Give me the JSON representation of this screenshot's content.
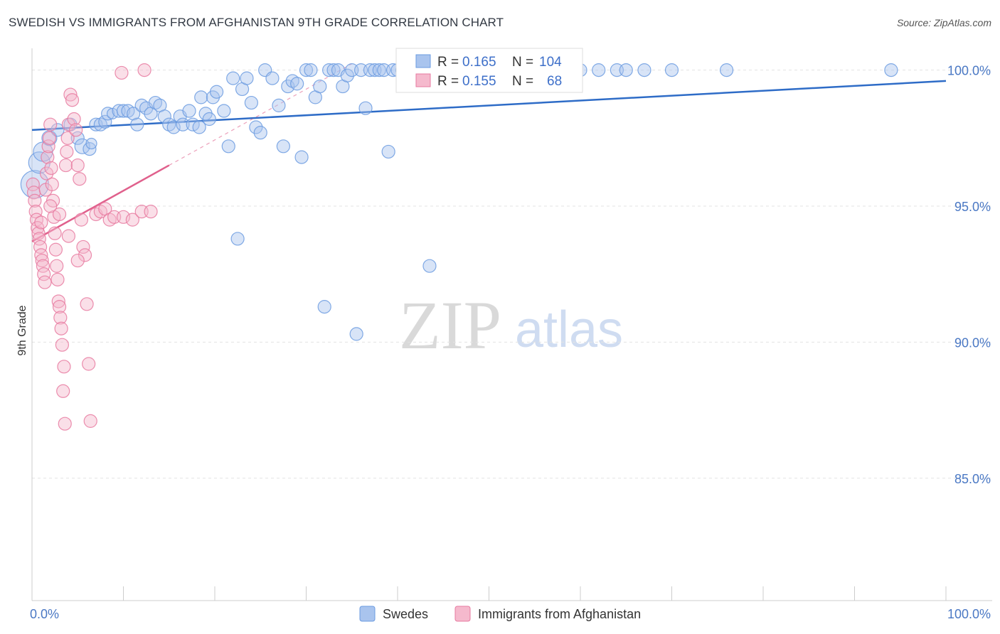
{
  "chart_data": {
    "type": "scatter",
    "title": "SWEDISH VS IMMIGRANTS FROM AFGHANISTAN 9TH GRADE CORRELATION CHART",
    "source": "Source: ZipAtlas.com",
    "xlabel": "",
    "ylabel": "9th Grade",
    "xlim": [
      0,
      100
    ],
    "ylim": [
      80.5,
      100.8
    ],
    "x_tick_labels": [
      {
        "value": 0,
        "label": "0.0%"
      },
      {
        "value": 100,
        "label": "100.0%"
      }
    ],
    "y_tick_labels": [
      {
        "value": 100,
        "label": "100.0%"
      },
      {
        "value": 95,
        "label": "95.0%"
      },
      {
        "value": 90,
        "label": "90.0%"
      },
      {
        "value": 85,
        "label": "85.0%"
      }
    ],
    "watermark": {
      "zip": "ZIP",
      "atlas": "atlas"
    },
    "legend": {
      "rows": [
        {
          "r_label": "R = ",
          "r_value": "0.165",
          "n_label": "N = ",
          "n_value": "104"
        },
        {
          "r_label": "R = ",
          "r_value": "0.155",
          "n_label": "N = ",
          "n_value": "68"
        }
      ]
    },
    "series": [
      {
        "name": "Swedes",
        "color": "#6b9be0",
        "fill": "#a9c4ee",
        "trend": {
          "x0": 0,
          "y0": 97.8,
          "x1": 100,
          "y1": 99.6,
          "color": "#2e6cc7"
        },
        "points": [
          [
            0.3,
            95.8,
            26
          ],
          [
            0.8,
            96.6,
            20
          ],
          [
            1.2,
            97.0,
            18
          ],
          [
            1.9,
            97.5,
            14
          ],
          [
            2.8,
            97.8,
            12
          ],
          [
            4.2,
            98.0,
            12
          ],
          [
            5.0,
            97.5,
            12
          ],
          [
            5.5,
            97.2,
            14
          ],
          [
            6.3,
            97.1,
            12
          ],
          [
            6.5,
            97.3,
            10
          ],
          [
            7.0,
            98.0,
            12
          ],
          [
            7.5,
            98.0,
            12
          ],
          [
            8.0,
            98.1,
            12
          ],
          [
            8.3,
            98.4,
            12
          ],
          [
            8.8,
            98.4,
            10
          ],
          [
            9.5,
            98.5,
            12
          ],
          [
            10.0,
            98.5,
            12
          ],
          [
            10.5,
            98.5,
            12
          ],
          [
            11.1,
            98.4,
            12
          ],
          [
            11.5,
            98.0,
            12
          ],
          [
            12.0,
            98.7,
            12
          ],
          [
            12.5,
            98.6,
            12
          ],
          [
            13.0,
            98.4,
            12
          ],
          [
            13.5,
            98.8,
            12
          ],
          [
            14.0,
            98.7,
            12
          ],
          [
            14.5,
            98.3,
            12
          ],
          [
            15.0,
            98.0,
            12
          ],
          [
            15.5,
            97.9,
            12
          ],
          [
            16.2,
            98.3,
            12
          ],
          [
            16.5,
            98.0,
            12
          ],
          [
            17.2,
            98.5,
            12
          ],
          [
            17.6,
            98.0,
            12
          ],
          [
            18.3,
            97.9,
            12
          ],
          [
            18.5,
            99.0,
            12
          ],
          [
            19.0,
            98.4,
            12
          ],
          [
            19.4,
            98.2,
            12
          ],
          [
            19.8,
            99.0,
            12
          ],
          [
            20.2,
            99.2,
            12
          ],
          [
            21.0,
            98.5,
            12
          ],
          [
            21.5,
            97.2,
            12
          ],
          [
            22.0,
            99.7,
            12
          ],
          [
            22.5,
            93.8,
            12
          ],
          [
            23.0,
            99.3,
            12
          ],
          [
            23.5,
            99.7,
            12
          ],
          [
            24.0,
            98.8,
            12
          ],
          [
            24.5,
            97.9,
            12
          ],
          [
            25.0,
            97.7,
            12
          ],
          [
            25.5,
            100.0,
            12
          ],
          [
            26.3,
            99.7,
            12
          ],
          [
            27.0,
            98.7,
            12
          ],
          [
            27.5,
            97.2,
            12
          ],
          [
            28.0,
            99.4,
            12
          ],
          [
            28.5,
            99.6,
            12
          ],
          [
            29.0,
            99.5,
            12
          ],
          [
            29.5,
            96.8,
            12
          ],
          [
            30.0,
            100.0,
            12
          ],
          [
            30.5,
            100.0,
            12
          ],
          [
            31.0,
            99.0,
            12
          ],
          [
            31.5,
            99.4,
            12
          ],
          [
            32.0,
            91.3,
            12
          ],
          [
            32.5,
            100.0,
            12
          ],
          [
            33.0,
            100.0,
            12
          ],
          [
            33.5,
            100.0,
            12
          ],
          [
            34.0,
            99.4,
            12
          ],
          [
            34.5,
            99.8,
            12
          ],
          [
            35.0,
            100.0,
            12
          ],
          [
            35.5,
            90.3,
            12
          ],
          [
            36.0,
            100.0,
            12
          ],
          [
            36.5,
            98.6,
            12
          ],
          [
            37.0,
            100.0,
            12
          ],
          [
            37.5,
            100.0,
            12
          ],
          [
            38.0,
            100.0,
            12
          ],
          [
            38.5,
            100.0,
            12
          ],
          [
            39.0,
            97.0,
            12
          ],
          [
            39.5,
            100.0,
            12
          ],
          [
            40.0,
            100.0,
            12
          ],
          [
            40.5,
            100.0,
            12
          ],
          [
            41.0,
            100.0,
            12
          ],
          [
            42.0,
            100.0,
            12
          ],
          [
            43.0,
            100.0,
            12
          ],
          [
            43.5,
            92.8,
            12
          ],
          [
            44.0,
            100.0,
            12
          ],
          [
            45.0,
            100.0,
            12
          ],
          [
            46.0,
            100.0,
            12
          ],
          [
            47.0,
            100.0,
            12
          ],
          [
            48.0,
            100.0,
            12
          ],
          [
            49.0,
            100.0,
            12
          ],
          [
            50.0,
            100.0,
            12
          ],
          [
            51.0,
            100.0,
            12
          ],
          [
            52.0,
            100.0,
            12
          ],
          [
            53.0,
            100.0,
            12
          ],
          [
            54.0,
            100.0,
            12
          ],
          [
            55.0,
            100.0,
            12
          ],
          [
            56.0,
            100.0,
            12
          ],
          [
            57.0,
            100.0,
            12
          ],
          [
            58.0,
            100.0,
            12
          ],
          [
            60.0,
            100.0,
            12
          ],
          [
            62.0,
            100.0,
            12
          ],
          [
            64.0,
            100.0,
            12
          ],
          [
            65.0,
            100.0,
            12
          ],
          [
            67.0,
            100.0,
            12
          ],
          [
            70.0,
            100.0,
            12
          ],
          [
            76.0,
            100.0,
            12
          ],
          [
            94.0,
            100.0,
            12
          ]
        ]
      },
      {
        "name": "Immigrants from Afghanistan",
        "color": "#e77aa0",
        "fill": "#f5b9cd",
        "trend": {
          "x0": 0,
          "y0": 93.7,
          "x1": 15,
          "y1": 96.5,
          "color": "#e0608c"
        },
        "points": [
          [
            0.1,
            95.8,
            12
          ],
          [
            0.2,
            95.5,
            12
          ],
          [
            0.3,
            95.2,
            12
          ],
          [
            0.4,
            94.8,
            12
          ],
          [
            0.5,
            94.5,
            12
          ],
          [
            0.6,
            94.2,
            12
          ],
          [
            0.7,
            94.0,
            12
          ],
          [
            0.8,
            93.8,
            12
          ],
          [
            0.9,
            93.5,
            12
          ],
          [
            1.0,
            93.2,
            12
          ],
          [
            1.1,
            93.0,
            12
          ],
          [
            1.2,
            92.8,
            12
          ],
          [
            1.3,
            92.5,
            12
          ],
          [
            1.4,
            92.2,
            12
          ],
          [
            1.5,
            95.6,
            12
          ],
          [
            1.6,
            96.2,
            12
          ],
          [
            1.7,
            96.8,
            12
          ],
          [
            1.8,
            97.2,
            12
          ],
          [
            1.9,
            97.5,
            12
          ],
          [
            2.0,
            98.0,
            12
          ],
          [
            2.1,
            96.4,
            12
          ],
          [
            2.2,
            95.8,
            12
          ],
          [
            2.3,
            95.2,
            12
          ],
          [
            2.4,
            94.6,
            12
          ],
          [
            2.5,
            94.0,
            12
          ],
          [
            2.6,
            93.4,
            12
          ],
          [
            2.7,
            92.8,
            12
          ],
          [
            2.8,
            92.3,
            12
          ],
          [
            2.9,
            91.5,
            12
          ],
          [
            3.0,
            91.3,
            12
          ],
          [
            3.1,
            90.9,
            12
          ],
          [
            3.2,
            90.5,
            12
          ],
          [
            3.3,
            89.9,
            12
          ],
          [
            3.4,
            88.2,
            12
          ],
          [
            3.5,
            89.1,
            12
          ],
          [
            3.6,
            87.0,
            12
          ],
          [
            3.7,
            96.5,
            12
          ],
          [
            3.8,
            97.0,
            12
          ],
          [
            3.9,
            97.5,
            12
          ],
          [
            4.0,
            98.0,
            12
          ],
          [
            4.2,
            99.1,
            12
          ],
          [
            4.4,
            98.9,
            12
          ],
          [
            4.6,
            98.2,
            12
          ],
          [
            4.8,
            97.8,
            12
          ],
          [
            5.0,
            96.5,
            12
          ],
          [
            5.2,
            96.0,
            12
          ],
          [
            5.4,
            94.5,
            12
          ],
          [
            5.6,
            93.5,
            12
          ],
          [
            5.8,
            93.2,
            12
          ],
          [
            6.0,
            91.4,
            12
          ],
          [
            6.2,
            89.2,
            12
          ],
          [
            6.4,
            87.1,
            12
          ],
          [
            7.0,
            94.7,
            12
          ],
          [
            7.5,
            94.8,
            12
          ],
          [
            8.0,
            94.9,
            12
          ],
          [
            8.5,
            94.5,
            12
          ],
          [
            9.0,
            94.6,
            12
          ],
          [
            10.0,
            94.6,
            12
          ],
          [
            11.0,
            94.5,
            12
          ],
          [
            12.0,
            94.8,
            12
          ],
          [
            13.0,
            94.8,
            12
          ],
          [
            9.8,
            99.9,
            12
          ],
          [
            12.3,
            100.0,
            12
          ],
          [
            1.0,
            94.4,
            12
          ],
          [
            2.0,
            95.0,
            12
          ],
          [
            3.0,
            94.7,
            12
          ],
          [
            4.0,
            93.9,
            12
          ],
          [
            5.0,
            93.0,
            12
          ]
        ]
      }
    ]
  }
}
